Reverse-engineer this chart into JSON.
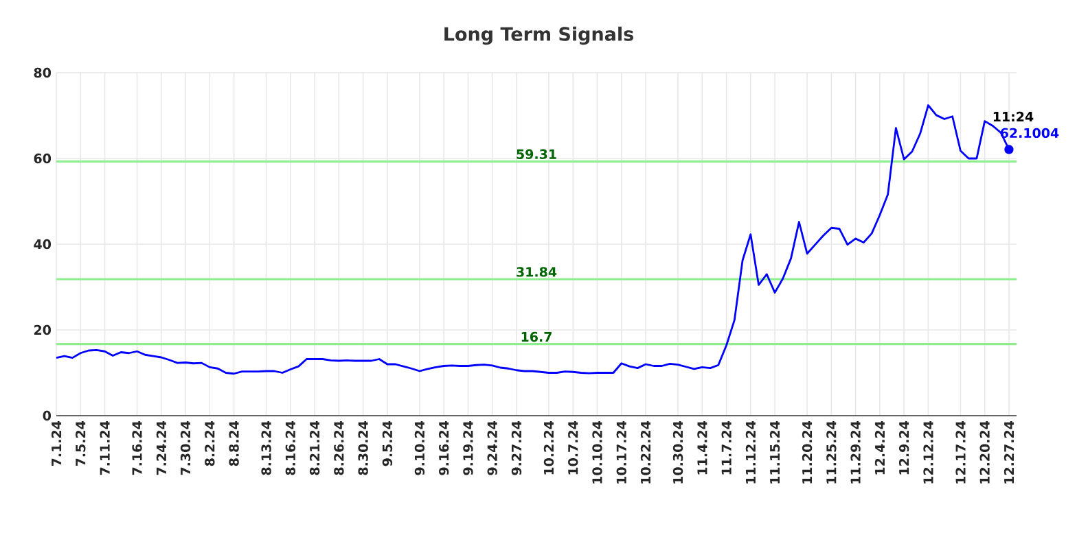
{
  "chart_data": {
    "type": "line",
    "title": "Long Term Signals",
    "categories": [
      "7.1.24",
      null,
      null,
      "7.5.24",
      null,
      null,
      "7.11.24",
      null,
      null,
      null,
      "7.16.24",
      null,
      null,
      "7.24.24",
      null,
      null,
      "7.30.24",
      null,
      null,
      "8.2.24",
      null,
      null,
      "8.8.24",
      null,
      null,
      null,
      "8.13.24",
      null,
      null,
      "8.16.24",
      null,
      null,
      "8.21.24",
      null,
      null,
      "8.26.24",
      null,
      null,
      "8.30.24",
      null,
      null,
      "9.5.24",
      null,
      null,
      null,
      "9.10.24",
      null,
      null,
      "9.16.24",
      null,
      null,
      "9.19.24",
      null,
      null,
      "9.24.24",
      null,
      null,
      "9.27.24",
      null,
      null,
      null,
      "10.2.24",
      null,
      null,
      "10.7.24",
      null,
      null,
      "10.10.24",
      null,
      null,
      "10.17.24",
      null,
      null,
      "10.22.24",
      null,
      null,
      null,
      "10.30.24",
      null,
      null,
      "11.4.24",
      null,
      null,
      "11.7.24",
      null,
      null,
      "11.12.24",
      null,
      null,
      "11.15.24",
      null,
      null,
      null,
      "11.20.24",
      null,
      null,
      "11.25.24",
      null,
      null,
      "11.29.24",
      null,
      null,
      "12.4.24",
      null,
      null,
      "12.9.24",
      null,
      null,
      "12.12.24",
      null,
      null,
      null,
      "12.17.24",
      null,
      null,
      "12.20.24",
      null,
      null,
      "12.27.24"
    ],
    "series": [
      {
        "color": "#0000ff",
        "values": [
          13.5,
          13.9,
          13.5,
          14.6,
          15.2,
          15.3,
          15.0,
          14.0,
          14.8,
          14.6,
          15.0,
          14.2,
          13.9,
          13.6,
          13.0,
          12.3,
          12.4,
          12.2,
          12.3,
          11.3,
          11.0,
          10.0,
          9.8,
          10.3,
          10.3,
          10.3,
          10.4,
          10.4,
          10.0,
          10.8,
          11.5,
          13.2,
          13.2,
          13.2,
          12.9,
          12.8,
          12.9,
          12.8,
          12.8,
          12.8,
          13.2,
          12.0,
          12.0,
          11.5,
          11.0,
          10.4,
          10.9,
          11.3,
          11.6,
          11.7,
          11.6,
          11.6,
          11.8,
          11.9,
          11.7,
          11.2,
          11.0,
          10.6,
          10.4,
          10.4,
          10.2,
          10.0,
          10.0,
          10.3,
          10.2,
          10.0,
          9.9,
          10.0,
          10.0,
          10.0,
          12.2,
          11.5,
          11.1,
          12.0,
          11.6,
          11.6,
          12.1,
          11.9,
          11.4,
          10.9,
          11.3,
          11.1,
          11.8,
          16.4,
          22.3,
          36.2,
          42.3,
          30.5,
          33.0,
          28.7,
          32.0,
          36.7,
          45.2,
          37.8,
          39.9,
          42.0,
          43.8,
          43.6,
          39.9,
          41.3,
          40.4,
          42.5,
          46.8,
          51.6,
          67.1,
          59.8,
          61.6,
          65.8,
          72.4,
          70.1,
          69.2,
          69.8,
          61.8,
          60.0,
          60.0,
          68.7,
          67.6,
          66.0,
          62.1
        ]
      }
    ],
    "ylim": [
      0,
      80
    ],
    "yticks": [
      0,
      20,
      40,
      60,
      80
    ],
    "grid": true,
    "marker": "none",
    "line_style": "solid",
    "ref_lines": [
      {
        "axis": "y",
        "value": 59.31,
        "label": "59.31",
        "color": "#90ee90"
      },
      {
        "axis": "y",
        "value": 31.84,
        "label": "31.84",
        "color": "#90ee90"
      },
      {
        "axis": "y",
        "value": 16.7,
        "label": "16.7",
        "color": "#90ee90"
      }
    ],
    "annotations": [
      {
        "text": "11:24",
        "x": "12.27.24",
        "y": 62.1004
      },
      {
        "text": "62.1004",
        "x": "12.27.24",
        "y": 62.1004
      }
    ]
  }
}
